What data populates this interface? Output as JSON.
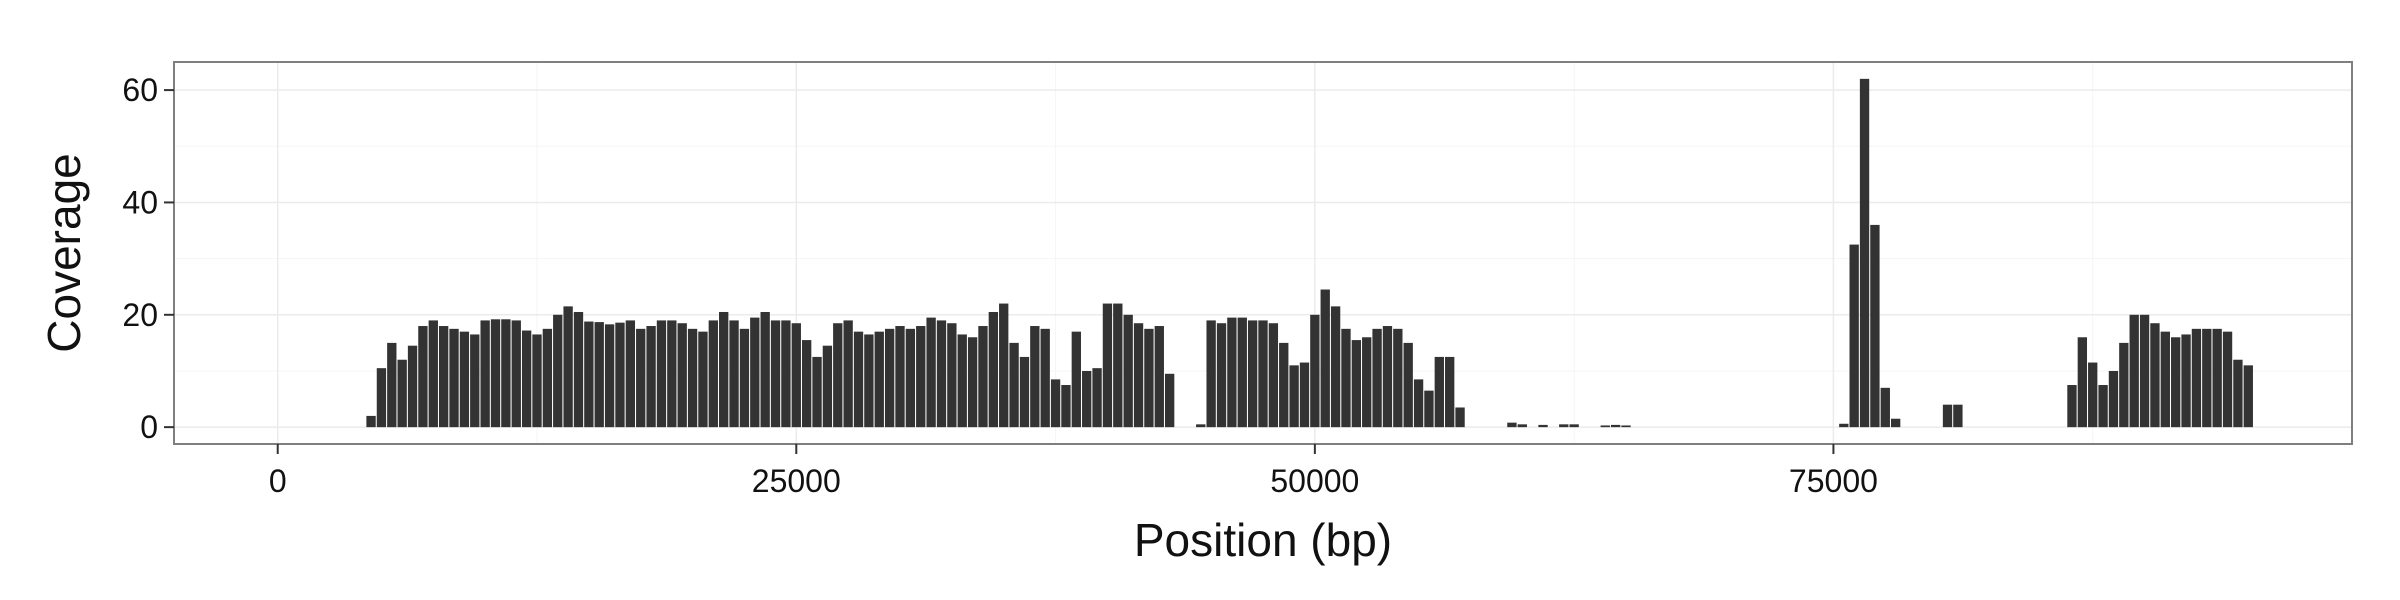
{
  "chart_data": {
    "type": "bar",
    "title": "",
    "xlabel": "Position (bp)",
    "ylabel": "Coverage",
    "xlim": [
      -5000,
      100000
    ],
    "ylim": [
      -3,
      65
    ],
    "x_ticks": [
      0,
      25000,
      50000,
      75000
    ],
    "x_tick_labels": [
      "0",
      "25000",
      "50000",
      "75000"
    ],
    "y_ticks": [
      0,
      20,
      40,
      60
    ],
    "y_tick_labels": [
      "0",
      "20",
      "40",
      "60"
    ],
    "grid": true,
    "legend": "none",
    "bar_width": 450,
    "colors": {
      "bar": "#333333",
      "panel_border": "#7f7f7f",
      "grid_major": "#ebebeb",
      "grid_minor": "#f5f5f5",
      "background": "#ffffff"
    },
    "series": [
      {
        "x": [
          4500,
          5000,
          5500,
          6000,
          6500,
          7000,
          7500,
          8000,
          8500,
          9000,
          9500,
          10000,
          10500,
          11000,
          11500,
          12000,
          12500,
          13000,
          13500,
          14000,
          14500,
          15000,
          15500,
          16000,
          16500,
          17000,
          17500,
          18000,
          18500,
          19000,
          19500,
          20000,
          20500,
          21000,
          21500,
          22000,
          22500,
          23000,
          23500,
          24000,
          24500,
          25000,
          25500,
          26000,
          26500,
          27000,
          27500,
          28000,
          28500,
          29000,
          29500,
          30000,
          30500,
          31000,
          31500,
          32000,
          32500,
          33000,
          33500,
          34000,
          34500,
          35000,
          35500,
          36000,
          36500,
          37000,
          37500,
          38000,
          38500,
          39000,
          39500,
          40000,
          40500,
          41000,
          41500,
          42000,
          42500,
          43000,
          44500,
          45000,
          45500,
          46000,
          46500,
          47000,
          47500,
          48000,
          48500,
          49000,
          49500,
          50000,
          50500,
          51000,
          51500,
          52000,
          52500,
          53000,
          53500,
          54000,
          54500,
          55000,
          55500,
          56000,
          56500,
          57000,
          59500,
          60000,
          61000,
          62000,
          62500,
          64000,
          64500,
          65000,
          75500,
          76000,
          76500,
          77000,
          77500,
          78000,
          80500,
          81000,
          86500,
          87000,
          87500,
          88000,
          88500,
          89000,
          89500,
          90000,
          90500,
          91000,
          91500,
          92000,
          92500,
          93000,
          93500,
          94000,
          94500,
          95000
        ],
        "values": [
          2,
          10.5,
          15,
          12,
          14.5,
          18,
          19,
          18,
          17.5,
          17,
          16.5,
          19,
          19.2,
          19.2,
          19,
          17.2,
          16.5,
          17.5,
          20,
          21.5,
          20.5,
          18.8,
          18.7,
          18.3,
          18.6,
          19,
          17.5,
          18,
          19,
          19,
          18.5,
          17.5,
          17,
          19,
          20.5,
          19,
          17.5,
          19.5,
          20.5,
          19,
          19,
          18.5,
          15.5,
          12.5,
          14.5,
          18.5,
          19,
          17,
          16.5,
          17,
          17.5,
          18,
          17.5,
          18,
          19.5,
          19,
          18.5,
          16.5,
          16,
          18,
          20.5,
          22,
          15,
          12.5,
          18,
          17.5,
          8.5,
          7.5,
          17,
          10,
          10.5,
          22,
          22,
          20,
          18.5,
          17.5,
          18,
          9.5,
          0.5,
          19,
          18.5,
          19.5,
          19.5,
          19,
          19,
          18.5,
          15,
          11,
          11.5,
          20,
          24.5,
          21.5,
          17.5,
          15.5,
          16,
          17.5,
          18,
          17.5,
          15,
          8.5,
          6.5,
          12.5,
          12.5,
          3.5,
          0.8,
          0.5,
          0.4,
          0.5,
          0.5,
          0.3,
          0.4,
          0.3,
          0.6,
          32.5,
          62,
          36,
          7,
          1.5,
          4,
          4,
          7.5,
          16,
          11.5,
          7.5,
          10,
          15,
          20,
          20,
          18.5,
          17,
          16,
          16.5,
          17.5,
          17.5,
          17.5,
          17,
          12,
          11
        ]
      }
    ]
  }
}
